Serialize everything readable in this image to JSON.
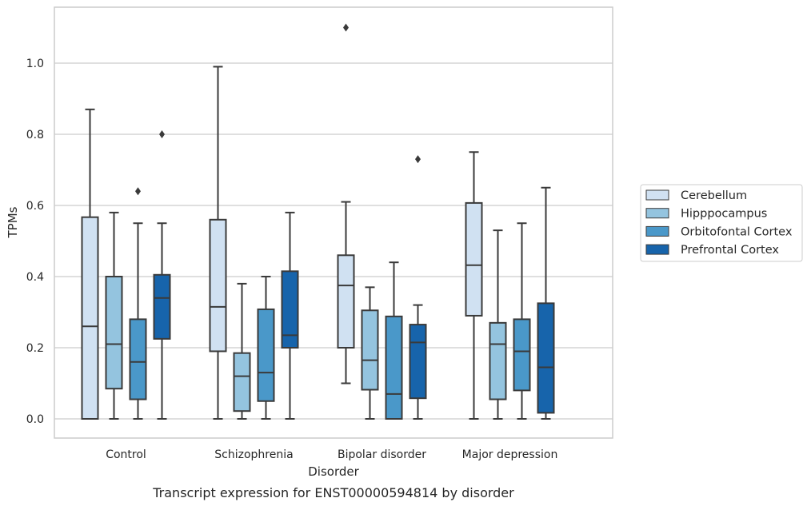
{
  "chart_data": {
    "type": "box",
    "title": "",
    "caption": "Transcript expression for ENST00000594814 by disorder",
    "xlabel": "Disorder",
    "ylabel": "TPMs",
    "ylim": [
      -0.05,
      1.16
    ],
    "yticks": [
      0.0,
      0.2,
      0.4,
      0.6,
      0.8,
      1.0
    ],
    "ytick_labels": [
      "0.0",
      "0.2",
      "0.4",
      "0.6",
      "0.8",
      "1.0"
    ],
    "grid": "horizontal",
    "legend_placement": "right",
    "categories": [
      "Control",
      "Schizophrenia",
      "Bipolar disorder",
      "Major depression"
    ],
    "series": [
      {
        "name": "Cerebellum",
        "color": "#d0e1f2",
        "boxes": [
          {
            "whislo": 0.0,
            "q1": 0.0,
            "med": 0.26,
            "q3": 0.567,
            "whishi": 0.87,
            "fliers": []
          },
          {
            "whislo": 0.0,
            "q1": 0.19,
            "med": 0.315,
            "q3": 0.56,
            "whishi": 0.99,
            "fliers": []
          },
          {
            "whislo": 0.1,
            "q1": 0.2,
            "med": 0.375,
            "q3": 0.46,
            "whishi": 0.61,
            "fliers": [
              1.1
            ]
          },
          {
            "whislo": 0.0,
            "q1": 0.29,
            "med": 0.432,
            "q3": 0.607,
            "whishi": 0.75,
            "fliers": []
          }
        ]
      },
      {
        "name": "Hipppocampus",
        "color": "#94c4df",
        "boxes": [
          {
            "whislo": 0.0,
            "q1": 0.085,
            "med": 0.21,
            "q3": 0.4,
            "whishi": 0.58,
            "fliers": []
          },
          {
            "whislo": 0.0,
            "q1": 0.022,
            "med": 0.12,
            "q3": 0.185,
            "whishi": 0.38,
            "fliers": []
          },
          {
            "whislo": 0.0,
            "q1": 0.082,
            "med": 0.165,
            "q3": 0.305,
            "whishi": 0.37,
            "fliers": []
          },
          {
            "whislo": 0.0,
            "q1": 0.055,
            "med": 0.21,
            "q3": 0.27,
            "whishi": 0.53,
            "fliers": []
          }
        ]
      },
      {
        "name": "Orbitofontal Cortex",
        "color": "#4a98c9",
        "boxes": [
          {
            "whislo": 0.0,
            "q1": 0.055,
            "med": 0.16,
            "q3": 0.28,
            "whishi": 0.55,
            "fliers": [
              0.64
            ]
          },
          {
            "whislo": 0.0,
            "q1": 0.05,
            "med": 0.13,
            "q3": 0.308,
            "whishi": 0.4,
            "fliers": []
          },
          {
            "whislo": 0.0,
            "q1": 0.0,
            "med": 0.07,
            "q3": 0.288,
            "whishi": 0.44,
            "fliers": []
          },
          {
            "whislo": 0.0,
            "q1": 0.08,
            "med": 0.19,
            "q3": 0.28,
            "whishi": 0.55,
            "fliers": []
          }
        ]
      },
      {
        "name": "Prefrontal Cortex",
        "color": "#1764ab",
        "boxes": [
          {
            "whislo": 0.0,
            "q1": 0.225,
            "med": 0.34,
            "q3": 0.405,
            "whishi": 0.55,
            "fliers": [
              0.8
            ]
          },
          {
            "whislo": 0.0,
            "q1": 0.2,
            "med": 0.235,
            "q3": 0.415,
            "whishi": 0.58,
            "fliers": []
          },
          {
            "whislo": 0.0,
            "q1": 0.058,
            "med": 0.215,
            "q3": 0.265,
            "whishi": 0.32,
            "fliers": [
              0.73
            ]
          },
          {
            "whislo": 0.0,
            "q1": 0.017,
            "med": 0.145,
            "q3": 0.325,
            "whishi": 0.65,
            "fliers": []
          }
        ]
      }
    ]
  }
}
